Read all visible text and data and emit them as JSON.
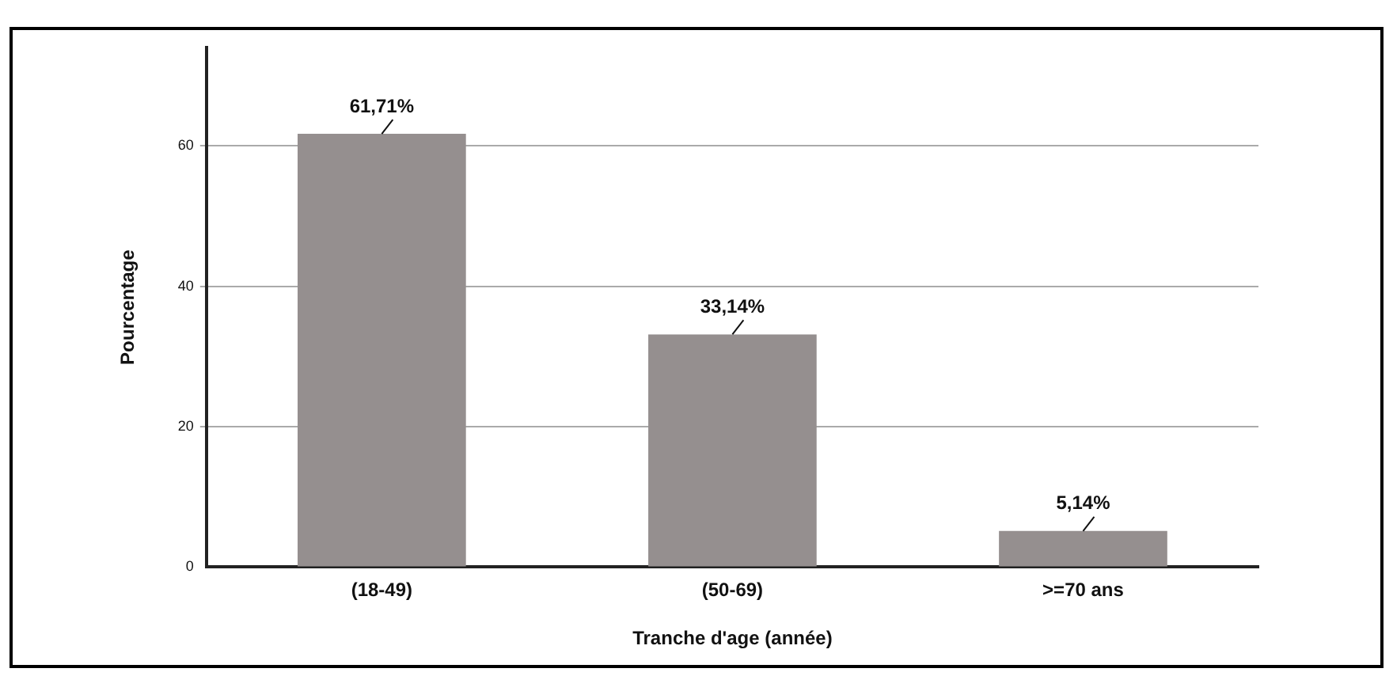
{
  "chart_data": {
    "type": "bar",
    "xlabel": "Tranche d'age (année)",
    "ylabel": "Pourcentage",
    "categories": [
      "(18-49)",
      "(50-69)",
      ">=70 ans"
    ],
    "values": [
      61.71,
      33.14,
      5.14
    ],
    "value_labels": [
      "61,71%",
      "33,14%",
      "5,14%"
    ],
    "color": "#958f8f",
    "ylim": [
      0,
      74
    ],
    "yticks": [
      0,
      20,
      40,
      60
    ],
    "grid": "y",
    "legend": false
  }
}
